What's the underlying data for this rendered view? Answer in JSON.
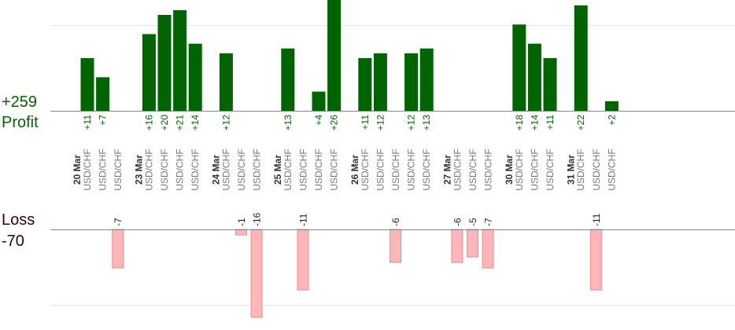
{
  "summary": {
    "profit_total": "+259",
    "profit_label": "Profit",
    "loss_label": "Loss",
    "loss_total": "-70"
  },
  "colors": {
    "profit": "#006400",
    "loss": "#ffb6b9",
    "loss_border": "#ee8a8f",
    "grid": "#e6e6e6",
    "axis": "#888888",
    "symbol_text": "#777777",
    "date_text": "#333333",
    "profit_text": "#006400",
    "loss_text": "#222222"
  },
  "chart_data": {
    "type": "bar",
    "groups": [
      {
        "date": "20 Mar",
        "trades": [
          {
            "symbol": "USD/CHF",
            "value": 11,
            "label": "+11"
          },
          {
            "symbol": "USD/CHF",
            "value": 7,
            "label": "+7"
          },
          {
            "symbol": "USD/CHF",
            "value": -7,
            "label": "-7"
          }
        ]
      },
      {
        "date": "23 Mar",
        "trades": [
          {
            "symbol": "USD/CHF",
            "value": 16,
            "label": "+16"
          },
          {
            "symbol": "USD/CHF",
            "value": 20,
            "label": "+20"
          },
          {
            "symbol": "USD/CHF",
            "value": 21,
            "label": "+21"
          },
          {
            "symbol": "USD/CHF",
            "value": 14,
            "label": "+14"
          }
        ]
      },
      {
        "date": "24 Mar",
        "trades": [
          {
            "symbol": "USD/CHF",
            "value": 12,
            "label": "+12"
          },
          {
            "symbol": "USD/CHF",
            "value": -1,
            "label": "-1"
          },
          {
            "symbol": "USD/CHF",
            "value": -16,
            "label": "-16"
          }
        ]
      },
      {
        "date": "25 Mar",
        "trades": [
          {
            "symbol": "USD/CHF",
            "value": 13,
            "label": "+13"
          },
          {
            "symbol": "USD/CHF",
            "value": -11,
            "label": "-11"
          },
          {
            "symbol": "USD/CHF",
            "value": 4,
            "label": "+4"
          },
          {
            "symbol": "USD/CHF",
            "value": 26,
            "label": "+26"
          }
        ]
      },
      {
        "date": "26 Mar",
        "trades": [
          {
            "symbol": "USD/CHF",
            "value": 11,
            "label": "+11"
          },
          {
            "symbol": "USD/CHF",
            "value": 12,
            "label": "+12"
          },
          {
            "symbol": "USD/CHF",
            "value": -6,
            "label": "-6"
          },
          {
            "symbol": "USD/CHF",
            "value": 12,
            "label": "+12"
          },
          {
            "symbol": "USD/CHF",
            "value": 13,
            "label": "+13"
          }
        ]
      },
      {
        "date": "27 Mar",
        "trades": [
          {
            "symbol": "USD/CHF",
            "value": -6,
            "label": "-6"
          },
          {
            "symbol": "USD/CHF",
            "value": -5,
            "label": "-5"
          },
          {
            "symbol": "USD/CHF",
            "value": -7,
            "label": "-7"
          }
        ]
      },
      {
        "date": "30 Mar",
        "trades": [
          {
            "symbol": "USD/CHF",
            "value": 18,
            "label": "+18"
          },
          {
            "symbol": "USD/CHF",
            "value": 14,
            "label": "+14"
          },
          {
            "symbol": "USD/CHF",
            "value": 11,
            "label": "+11"
          }
        ]
      },
      {
        "date": "31 Mar",
        "trades": [
          {
            "symbol": "USD/CHF",
            "value": 22,
            "label": "+22"
          },
          {
            "symbol": "USD/CHF",
            "value": -11,
            "label": "-11"
          },
          {
            "symbol": "USD/CHF",
            "value": 2,
            "label": "+2"
          }
        ]
      }
    ]
  }
}
